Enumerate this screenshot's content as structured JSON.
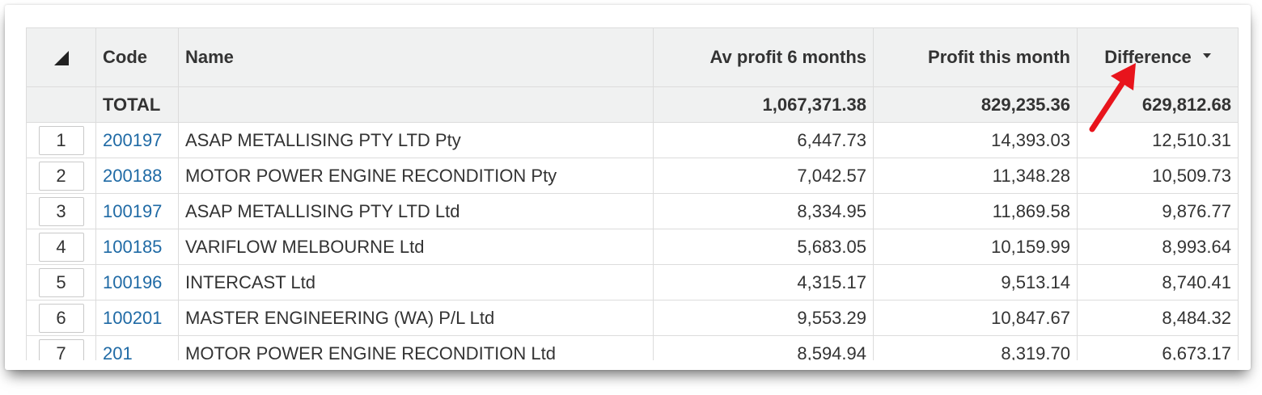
{
  "table": {
    "columns": {
      "code": "Code",
      "name": "Name",
      "av_profit": "Av profit 6 months",
      "profit_month": "Profit this month",
      "difference": "Difference"
    },
    "total": {
      "label": "TOTAL",
      "av_profit": "1,067,371.38",
      "profit_month": "829,235.36",
      "difference": "629,812.68"
    },
    "rows": [
      {
        "no": "1",
        "code": "200197",
        "name": "ASAP METALLISING PTY LTD Pty",
        "av_profit": "6,447.73",
        "profit_month": "14,393.03",
        "difference": "12,510.31"
      },
      {
        "no": "2",
        "code": "200188",
        "name": "MOTOR POWER ENGINE RECONDITION Pty",
        "av_profit": "7,042.57",
        "profit_month": "11,348.28",
        "difference": "10,509.73"
      },
      {
        "no": "3",
        "code": "100197",
        "name": "ASAP METALLISING PTY LTD Ltd",
        "av_profit": "8,334.95",
        "profit_month": "11,869.58",
        "difference": "9,876.77"
      },
      {
        "no": "4",
        "code": "100185",
        "name": "VARIFLOW MELBOURNE Ltd",
        "av_profit": "5,683.05",
        "profit_month": "10,159.99",
        "difference": "8,993.64"
      },
      {
        "no": "5",
        "code": "100196",
        "name": "INTERCAST Ltd",
        "av_profit": "4,315.17",
        "profit_month": "9,513.14",
        "difference": "8,740.41"
      },
      {
        "no": "6",
        "code": "100201",
        "name": "MASTER ENGINEERING (WA) P/L Ltd",
        "av_profit": "9,553.29",
        "profit_month": "10,847.67",
        "difference": "8,484.32"
      },
      {
        "no": "7",
        "code": "201",
        "name": "MOTOR POWER ENGINE RECONDITION Ltd",
        "av_profit": "8,594.94",
        "profit_month": "8,319.70",
        "difference": "6,673.17"
      }
    ]
  },
  "colors": {
    "link": "#1f6aa5",
    "header_bg": "#f0f1f1",
    "annotation_arrow": "#e8141c"
  },
  "icons": {
    "corner": "corner-triangle-icon",
    "sort": "sort-descending-caret-icon",
    "annotation": "red-arrow-icon"
  }
}
